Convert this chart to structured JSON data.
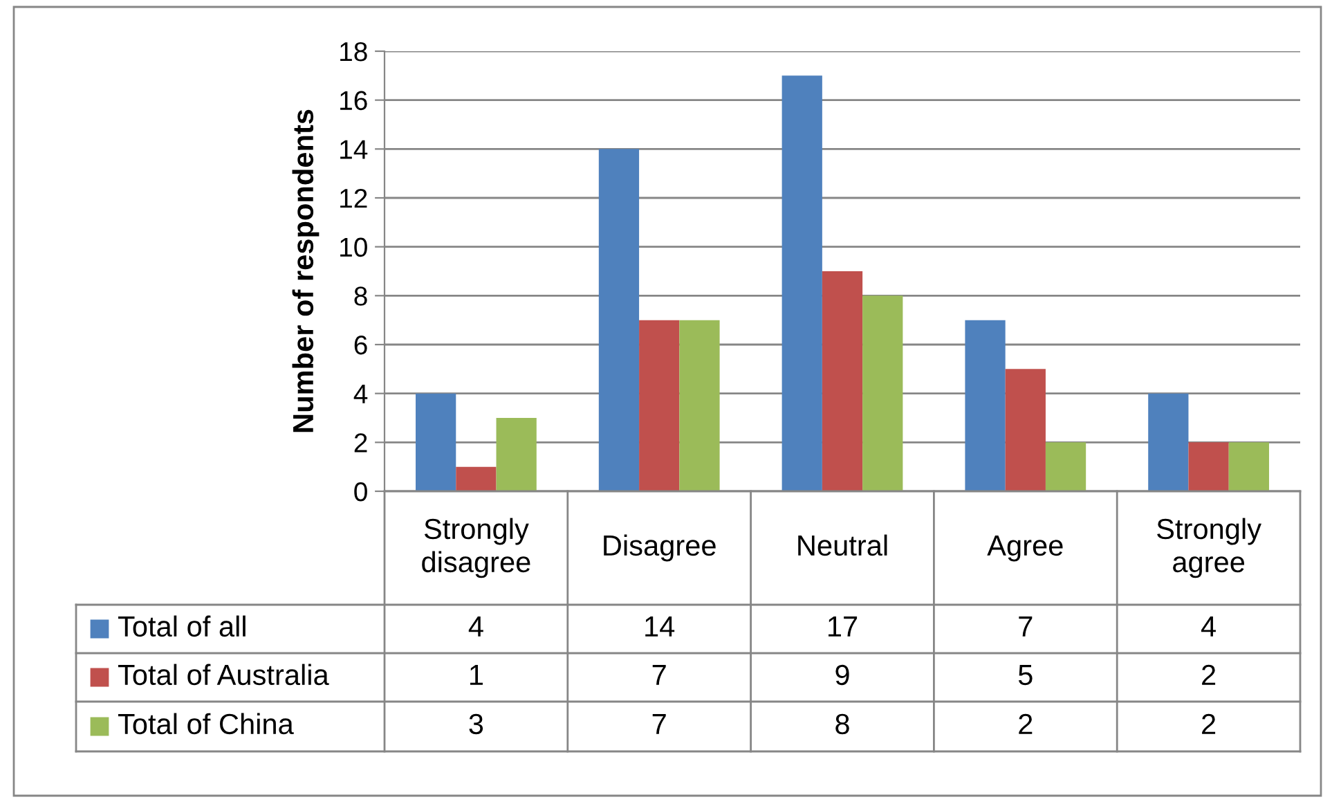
{
  "chart_data": {
    "type": "bar",
    "ylabel": "Number of respondents",
    "categories": [
      "Strongly disagree",
      "Disagree",
      "Neutral",
      "Agree",
      "Strongly agree"
    ],
    "series": [
      {
        "name": "Total of all",
        "color": "#4f81bd",
        "values": [
          4,
          14,
          17,
          7,
          4
        ]
      },
      {
        "name": "Total of Australia",
        "color": "#c0504d",
        "values": [
          1,
          7,
          9,
          5,
          2
        ]
      },
      {
        "name": "Total of China",
        "color": "#9bbb59",
        "values": [
          3,
          7,
          8,
          2,
          2
        ]
      }
    ],
    "ylim": [
      0,
      18
    ],
    "yticks": [
      0,
      2,
      4,
      6,
      8,
      10,
      12,
      14,
      16,
      18
    ],
    "grid": "y",
    "legend": "bottom",
    "data_labels": true
  }
}
